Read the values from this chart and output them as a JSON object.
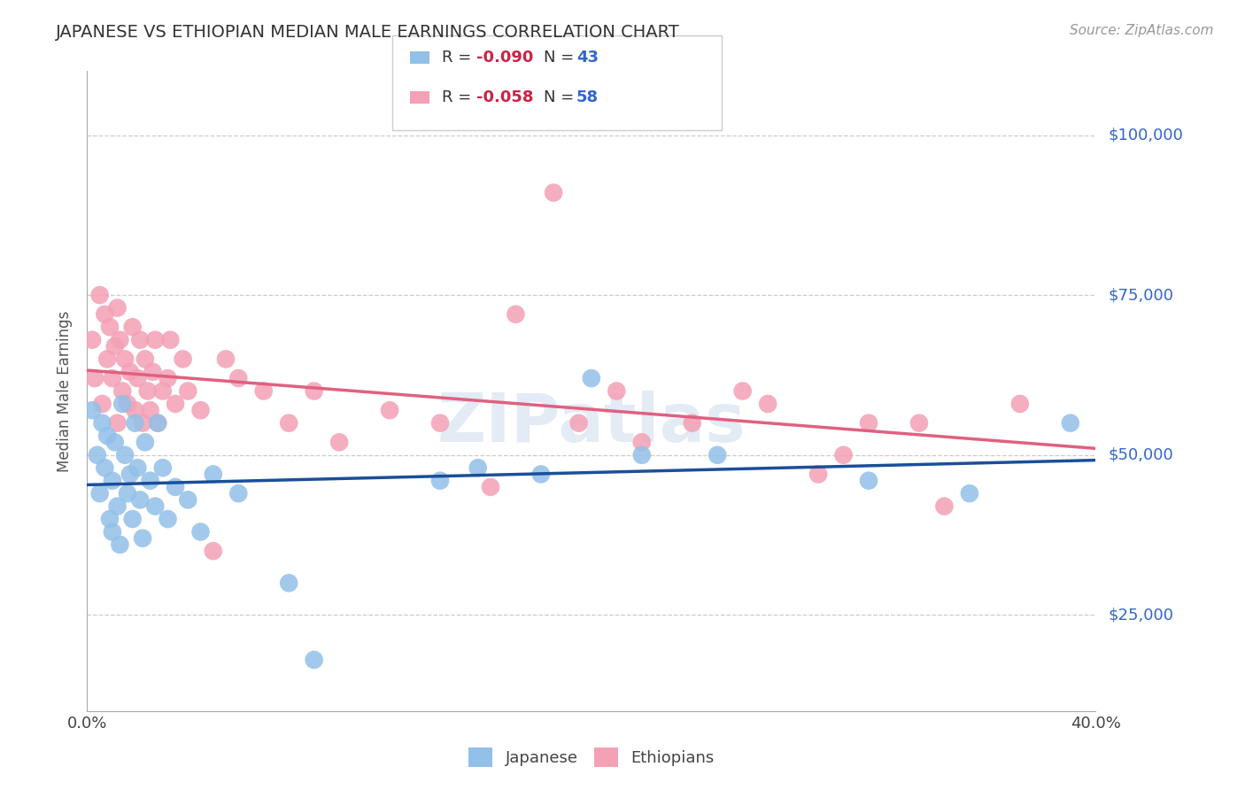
{
  "title": "JAPANESE VS ETHIOPIAN MEDIAN MALE EARNINGS CORRELATION CHART",
  "source": "Source: ZipAtlas.com",
  "ylabel": "Median Male Earnings",
  "xlim": [
    0.0,
    0.4
  ],
  "ylim": [
    10000,
    110000
  ],
  "yticks": [
    25000,
    50000,
    75000,
    100000
  ],
  "xticks": [
    0.0,
    0.05,
    0.1,
    0.15,
    0.2,
    0.25,
    0.3,
    0.35,
    0.4
  ],
  "xtick_labels": [
    "0.0%",
    "",
    "",
    "",
    "",
    "",
    "",
    "",
    "40.0%"
  ],
  "background_color": "#ffffff",
  "grid_color": "#cccccc",
  "japanese_color": "#92C0E8",
  "ethiopian_color": "#F4A0B5",
  "japanese_line_color": "#1A4F99",
  "ethiopian_line_color": "#E06080",
  "watermark": "ZIPatlas",
  "japanese_x": [
    0.002,
    0.004,
    0.005,
    0.006,
    0.007,
    0.008,
    0.009,
    0.01,
    0.01,
    0.011,
    0.012,
    0.013,
    0.014,
    0.015,
    0.016,
    0.017,
    0.018,
    0.019,
    0.02,
    0.021,
    0.022,
    0.023,
    0.025,
    0.027,
    0.028,
    0.03,
    0.032,
    0.035,
    0.04,
    0.045,
    0.05,
    0.06,
    0.08,
    0.14,
    0.18,
    0.25,
    0.31,
    0.35,
    0.39,
    0.2,
    0.22,
    0.09,
    0.155
  ],
  "japanese_y": [
    57000,
    50000,
    44000,
    55000,
    48000,
    53000,
    40000,
    46000,
    38000,
    52000,
    42000,
    36000,
    58000,
    50000,
    44000,
    47000,
    40000,
    55000,
    48000,
    43000,
    37000,
    52000,
    46000,
    42000,
    55000,
    48000,
    40000,
    45000,
    43000,
    38000,
    47000,
    44000,
    30000,
    46000,
    47000,
    50000,
    46000,
    44000,
    55000,
    62000,
    50000,
    18000,
    48000
  ],
  "ethiopian_x": [
    0.002,
    0.003,
    0.005,
    0.006,
    0.007,
    0.008,
    0.009,
    0.01,
    0.011,
    0.012,
    0.012,
    0.013,
    0.014,
    0.015,
    0.016,
    0.017,
    0.018,
    0.019,
    0.02,
    0.021,
    0.022,
    0.023,
    0.024,
    0.025,
    0.026,
    0.027,
    0.028,
    0.03,
    0.032,
    0.033,
    0.035,
    0.038,
    0.04,
    0.045,
    0.05,
    0.055,
    0.06,
    0.07,
    0.08,
    0.09,
    0.1,
    0.12,
    0.14,
    0.16,
    0.185,
    0.21,
    0.24,
    0.27,
    0.3,
    0.33,
    0.17,
    0.195,
    0.22,
    0.26,
    0.29,
    0.31,
    0.34,
    0.37
  ],
  "ethiopian_y": [
    68000,
    62000,
    75000,
    58000,
    72000,
    65000,
    70000,
    62000,
    67000,
    55000,
    73000,
    68000,
    60000,
    65000,
    58000,
    63000,
    70000,
    57000,
    62000,
    68000,
    55000,
    65000,
    60000,
    57000,
    63000,
    68000,
    55000,
    60000,
    62000,
    68000,
    58000,
    65000,
    60000,
    57000,
    35000,
    65000,
    62000,
    60000,
    55000,
    60000,
    52000,
    57000,
    55000,
    45000,
    91000,
    60000,
    55000,
    58000,
    50000,
    55000,
    72000,
    55000,
    52000,
    60000,
    47000,
    55000,
    42000,
    58000
  ]
}
